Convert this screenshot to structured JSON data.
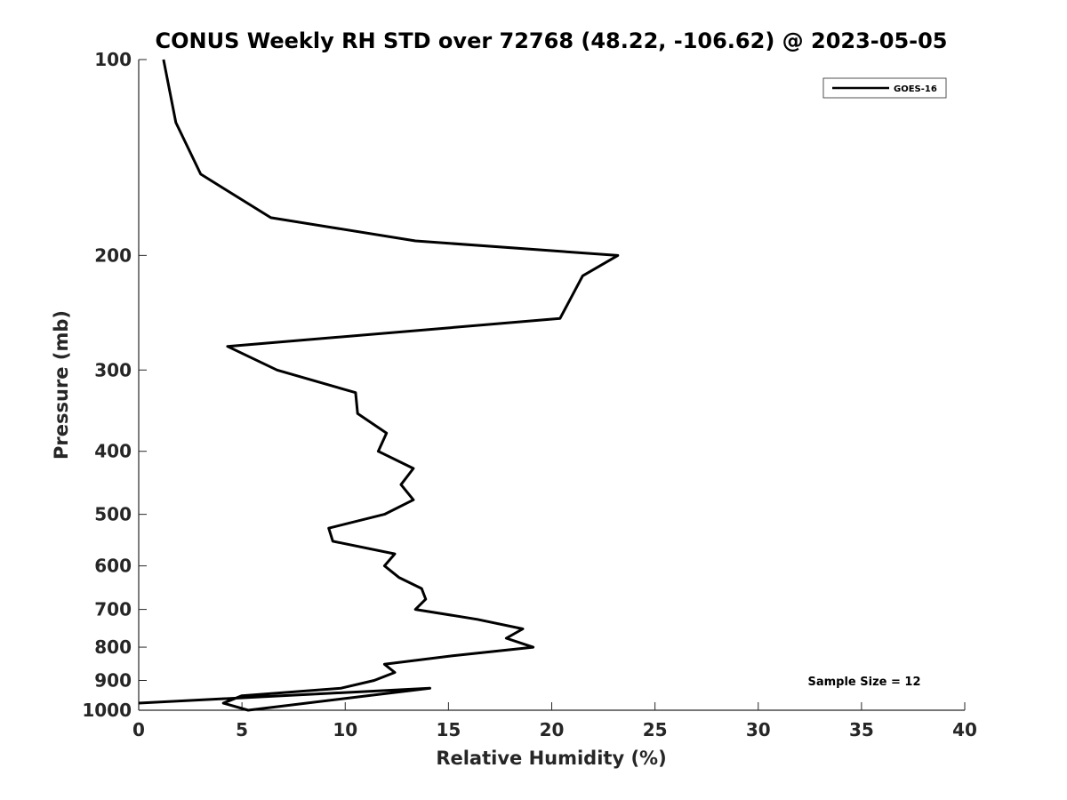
{
  "chart_data": {
    "type": "line",
    "title": "CONUS Weekly RH STD over 72768 (48.22, -106.62) @ 2023-05-05",
    "xlabel": "Relative Humidity (%)",
    "ylabel": "Pressure (mb)",
    "xlim": [
      0,
      40
    ],
    "ylim": [
      100,
      1000
    ],
    "y_scale": "log",
    "y_reversed": true,
    "x_ticks": [
      "0",
      "5",
      "10",
      "15",
      "20",
      "25",
      "30",
      "35",
      "40"
    ],
    "y_ticks": [
      "100",
      "200",
      "300",
      "400",
      "500",
      "600",
      "700",
      "800",
      "900",
      "1000"
    ],
    "grid": false,
    "legend_position": "top-right",
    "annotation": "Sample Size = 12",
    "series": [
      {
        "name": "GOES-16",
        "color": "#000000",
        "x": [
          1.2,
          1.8,
          3.0,
          6.4,
          13.4,
          23.2,
          21.5,
          20.4,
          4.3,
          6.7,
          10.5,
          10.6,
          12.0,
          11.6,
          13.3,
          12.7,
          13.3,
          11.9,
          9.2,
          9.4,
          12.4,
          11.9,
          12.6,
          13.7,
          13.9,
          13.4,
          16.4,
          18.6,
          17.8,
          19.1,
          15.2,
          11.9,
          12.4,
          11.4,
          9.8,
          5.0,
          4.1,
          5.3,
          14.1,
          0.0
        ]
      }
    ],
    "y": [
      100,
      125,
      150,
      175,
      190,
      200,
      215,
      250,
      276,
      300,
      325,
      350,
      375,
      400,
      425,
      450,
      475,
      500,
      525,
      550,
      575,
      600,
      625,
      650,
      675,
      700,
      725,
      750,
      775,
      800,
      825,
      850,
      875,
      900,
      925,
      950,
      975,
      1000,
      925,
      975
    ]
  }
}
